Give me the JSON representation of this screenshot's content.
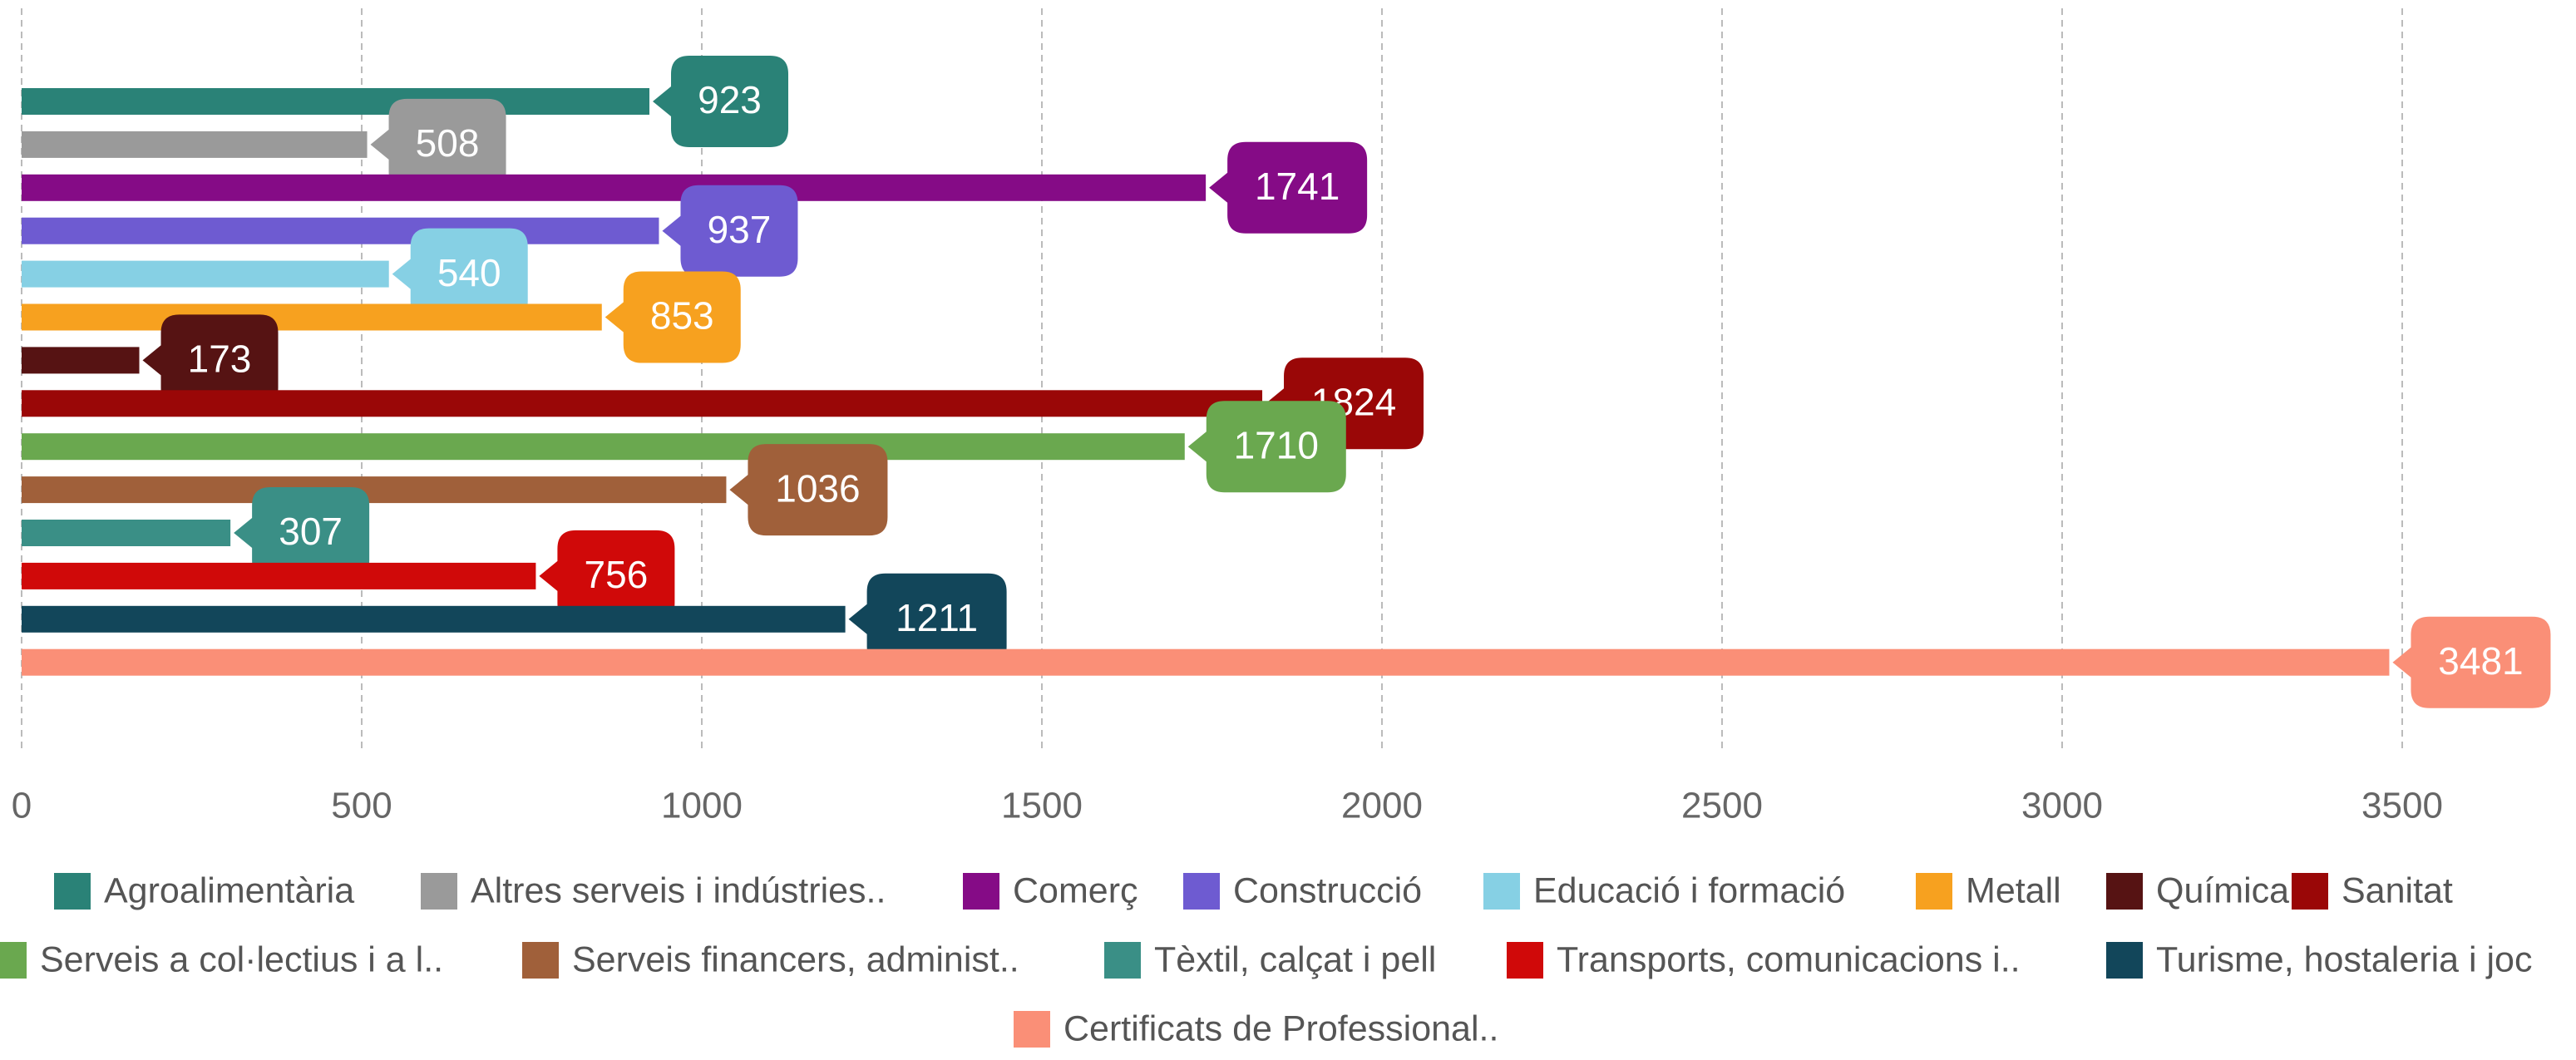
{
  "chart_data": {
    "type": "bar",
    "orientation": "horizontal",
    "series": [
      {
        "name": "Agroalimentària",
        "color": "#2a8277",
        "values": [
          923
        ]
      },
      {
        "name": "Altres serveis i indústries..",
        "color": "#9a9a9a",
        "values": [
          508
        ]
      },
      {
        "name": "Comerç",
        "color": "#850b86",
        "values": [
          1741
        ]
      },
      {
        "name": "Construcció",
        "color": "#6e5bd1",
        "values": [
          937
        ]
      },
      {
        "name": "Educació i formació",
        "color": "#86d0e4",
        "values": [
          540
        ]
      },
      {
        "name": "Metall",
        "color": "#f7a11f",
        "values": [
          853
        ]
      },
      {
        "name": "Química",
        "color": "#561313",
        "values": [
          173
        ]
      },
      {
        "name": "Sanitat",
        "color": "#9a0707",
        "values": [
          1824
        ]
      },
      {
        "name": "Serveis a col·lectius i a l..",
        "color": "#6aa84f",
        "values": [
          1710
        ]
      },
      {
        "name": "Serveis financers, administ..",
        "color": "#a0603a",
        "values": [
          1036
        ]
      },
      {
        "name": "Tèxtil, calçat i pell",
        "color": "#3a8f86",
        "values": [
          307
        ]
      },
      {
        "name": "Transports, comunicacions i..",
        "color": "#d00909",
        "values": [
          756
        ]
      },
      {
        "name": "Turisme, hostaleria i joc",
        "color": "#12465a",
        "values": [
          1211
        ]
      },
      {
        "name": "Certificats de Professional..",
        "color": "#fa8f77",
        "values": [
          3481
        ]
      }
    ],
    "xlim": [
      0,
      3500
    ],
    "xticks": [
      0,
      500,
      1000,
      1500,
      2000,
      2500,
      3000,
      3500
    ],
    "grid": true
  }
}
